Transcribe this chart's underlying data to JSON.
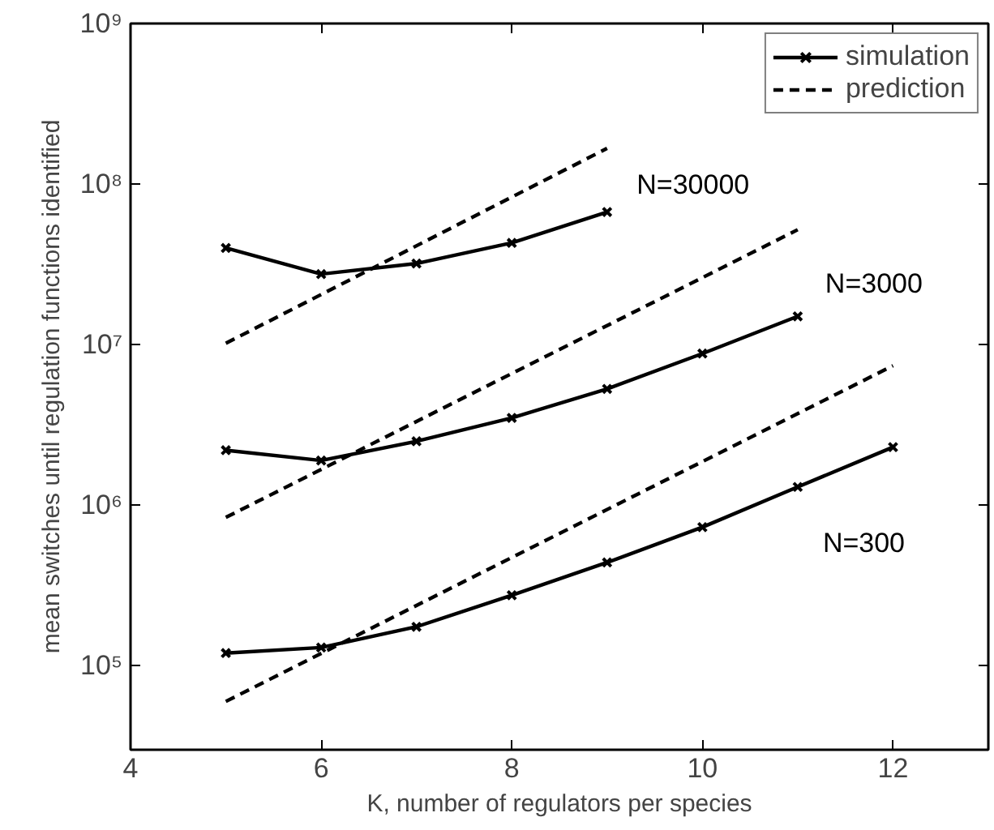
{
  "chart_data": {
    "type": "line",
    "xlabel": "K, number of regulators per species",
    "ylabel": "mean switches until regulation functions identified",
    "log": "y",
    "xlim": [
      4,
      13
    ],
    "ylim": [
      30000,
      1000000000
    ],
    "xticks": [
      4,
      6,
      8,
      10,
      12
    ],
    "yticks": [
      {
        "value": 100000,
        "label": "10⁵"
      },
      {
        "value": 1000000,
        "label": "10⁶"
      },
      {
        "value": 10000000,
        "label": "10⁷"
      },
      {
        "value": 100000000,
        "label": "10⁸"
      },
      {
        "value": 1000000000,
        "label": "10⁹"
      }
    ],
    "grid": false,
    "legend": "top right",
    "series": [
      {
        "name": "simulation",
        "color": "#000000",
        "marker": "cross",
        "line_style": "solid",
        "x": [
          5,
          6,
          7,
          8,
          9
        ],
        "values": [
          40000000,
          27500000,
          32000000,
          43000000,
          67000000
        ]
      },
      {
        "name": "prediction",
        "color": "#000000",
        "marker": "none",
        "line_style": "dashed",
        "x": [
          5,
          9
        ],
        "values": [
          10200000,
          167000000
        ]
      },
      {
        "color": "#000000",
        "marker": "cross",
        "line_style": "solid",
        "x": [
          5,
          6,
          7,
          8,
          9,
          10,
          11
        ],
        "values": [
          2200000,
          1900000,
          2500000,
          3500000,
          5300000,
          8800000,
          15000000
        ]
      },
      {
        "color": "#000000",
        "marker": "none",
        "line_style": "dashed",
        "x": [
          5,
          11
        ],
        "values": [
          840000,
          52000000
        ]
      },
      {
        "color": "#000000",
        "marker": "cross",
        "line_style": "solid",
        "x": [
          5,
          6,
          7,
          8,
          9,
          10,
          11,
          12
        ],
        "values": [
          120000,
          130000,
          175000,
          275000,
          440000,
          730000,
          1300000,
          2300000
        ]
      },
      {
        "color": "#000000",
        "marker": "none",
        "line_style": "dashed",
        "x": [
          5,
          12
        ],
        "values": [
          60000,
          7400000
        ]
      }
    ],
    "annotations": [
      "N=30000",
      "N=3000",
      "N=300"
    ]
  }
}
